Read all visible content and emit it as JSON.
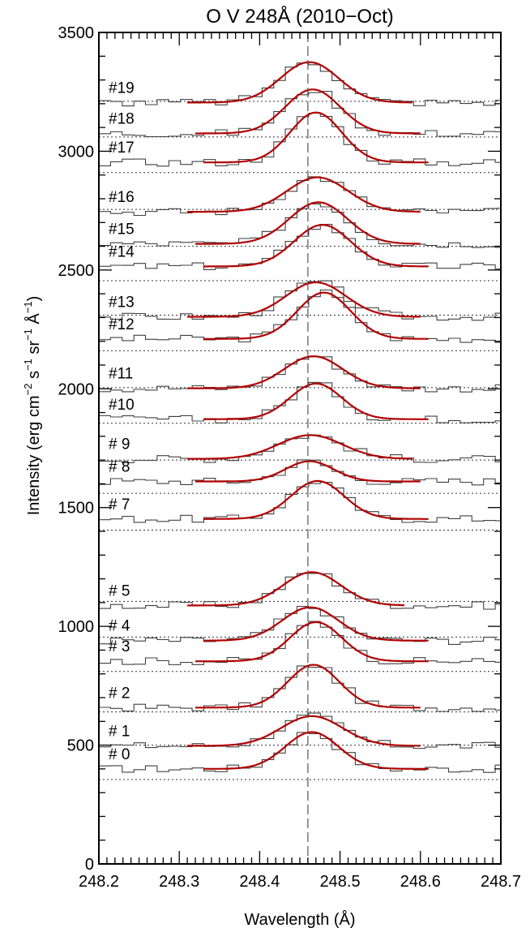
{
  "chart_data": {
    "type": "line",
    "title": "O V 248Å (2010−Oct)",
    "xlabel": "Wavelength (Å)",
    "ylabel_parts": [
      "Intensity (erg cm",
      "−2",
      " s",
      "−1",
      " sr",
      "−1",
      " Å",
      "−1",
      ")"
    ],
    "xlim": [
      248.2,
      248.7
    ],
    "ylim": [
      0,
      3500
    ],
    "x_ticks": [
      "248.2",
      "248.3",
      "248.4",
      "248.5",
      "248.6",
      "248.7"
    ],
    "y_ticks": [
      "0",
      "500",
      "1000",
      "1500",
      "2000",
      "2500",
      "3000",
      "3500"
    ],
    "reference_wavelength": 248.46,
    "colors": {
      "fit": "#b20000",
      "observed": "#404040",
      "axis": "#000000"
    },
    "series": [
      {
        "name": "# 0",
        "baseline": 355,
        "fit": {
          "center": 248.465,
          "amp": 155,
          "sigma": 0.033,
          "offset": 400,
          "range": [
            248.33,
            248.61
          ]
        }
      },
      {
        "name": "# 1",
        "baseline": 500,
        "fit": {
          "center": 248.465,
          "amp": 125,
          "sigma": 0.038,
          "offset": 497,
          "range": [
            248.31,
            248.6
          ]
        }
      },
      {
        "name": "# 2",
        "baseline": 640,
        "fit": {
          "center": 248.467,
          "amp": 180,
          "sigma": 0.032,
          "offset": 658,
          "range": [
            248.32,
            248.6
          ]
        }
      },
      {
        "name": "# 3",
        "baseline": 810,
        "fit": {
          "center": 248.47,
          "amp": 165,
          "sigma": 0.032,
          "offset": 853,
          "range": [
            248.32,
            248.61
          ]
        }
      },
      {
        "name": "# 4",
        "baseline": 955,
        "fit": {
          "center": 248.463,
          "amp": 140,
          "sigma": 0.035,
          "offset": 940,
          "range": [
            248.33,
            248.61
          ]
        }
      },
      {
        "name": "# 5",
        "baseline": 1105,
        "fit": {
          "center": 248.465,
          "amp": 140,
          "sigma": 0.036,
          "offset": 1088,
          "range": [
            248.31,
            248.58
          ]
        }
      },
      {
        "name": "# 7",
        "baseline": 1405,
        "fit": {
          "center": 248.472,
          "amp": 160,
          "sigma": 0.033,
          "offset": 1452,
          "range": [
            248.33,
            248.61
          ]
        }
      },
      {
        "name": "# 8",
        "baseline": 1560,
        "fit": {
          "center": 248.462,
          "amp": 85,
          "sigma": 0.03,
          "offset": 1610,
          "range": [
            248.32,
            248.6
          ]
        }
      },
      {
        "name": "# 9",
        "baseline": 1700,
        "fit": {
          "center": 248.463,
          "amp": 100,
          "sigma": 0.04,
          "offset": 1705,
          "range": [
            248.31,
            248.59
          ]
        }
      },
      {
        "name": "#10",
        "baseline": 1855,
        "fit": {
          "center": 248.47,
          "amp": 150,
          "sigma": 0.032,
          "offset": 1872,
          "range": [
            248.33,
            248.61
          ]
        }
      },
      {
        "name": "#11",
        "baseline": 2005,
        "fit": {
          "center": 248.467,
          "amp": 135,
          "sigma": 0.036,
          "offset": 2002,
          "range": [
            248.31,
            248.6
          ]
        }
      },
      {
        "name": "#12",
        "baseline": 2160,
        "fit": {
          "center": 248.48,
          "amp": 195,
          "sigma": 0.033,
          "offset": 2210,
          "range": [
            248.33,
            248.61
          ]
        }
      },
      {
        "name": "#13",
        "baseline": 2310,
        "fit": {
          "center": 248.47,
          "amp": 145,
          "sigma": 0.037,
          "offset": 2303,
          "range": [
            248.31,
            248.6
          ]
        }
      },
      {
        "name": "#14",
        "baseline": 2455,
        "fit": {
          "center": 248.478,
          "amp": 175,
          "sigma": 0.035,
          "offset": 2515,
          "range": [
            248.33,
            248.61
          ]
        }
      },
      {
        "name": "#15",
        "baseline": 2600,
        "fit": {
          "center": 248.473,
          "amp": 175,
          "sigma": 0.036,
          "offset": 2610,
          "range": [
            248.32,
            248.6
          ]
        }
      },
      {
        "name": "#16",
        "baseline": 2755,
        "fit": {
          "center": 248.472,
          "amp": 145,
          "sigma": 0.038,
          "offset": 2745,
          "range": [
            248.31,
            248.6
          ]
        }
      },
      {
        "name": "#17",
        "baseline": 2910,
        "fit": {
          "center": 248.47,
          "amp": 210,
          "sigma": 0.032,
          "offset": 2953,
          "range": [
            248.33,
            248.61
          ]
        }
      },
      {
        "name": "#18",
        "baseline": 3060,
        "fit": {
          "center": 248.466,
          "amp": 185,
          "sigma": 0.034,
          "offset": 3075,
          "range": [
            248.32,
            248.6
          ]
        }
      },
      {
        "name": "#19",
        "baseline": 3210,
        "fit": {
          "center": 248.462,
          "amp": 170,
          "sigma": 0.036,
          "offset": 3205,
          "range": [
            248.31,
            248.59
          ]
        }
      }
    ]
  }
}
